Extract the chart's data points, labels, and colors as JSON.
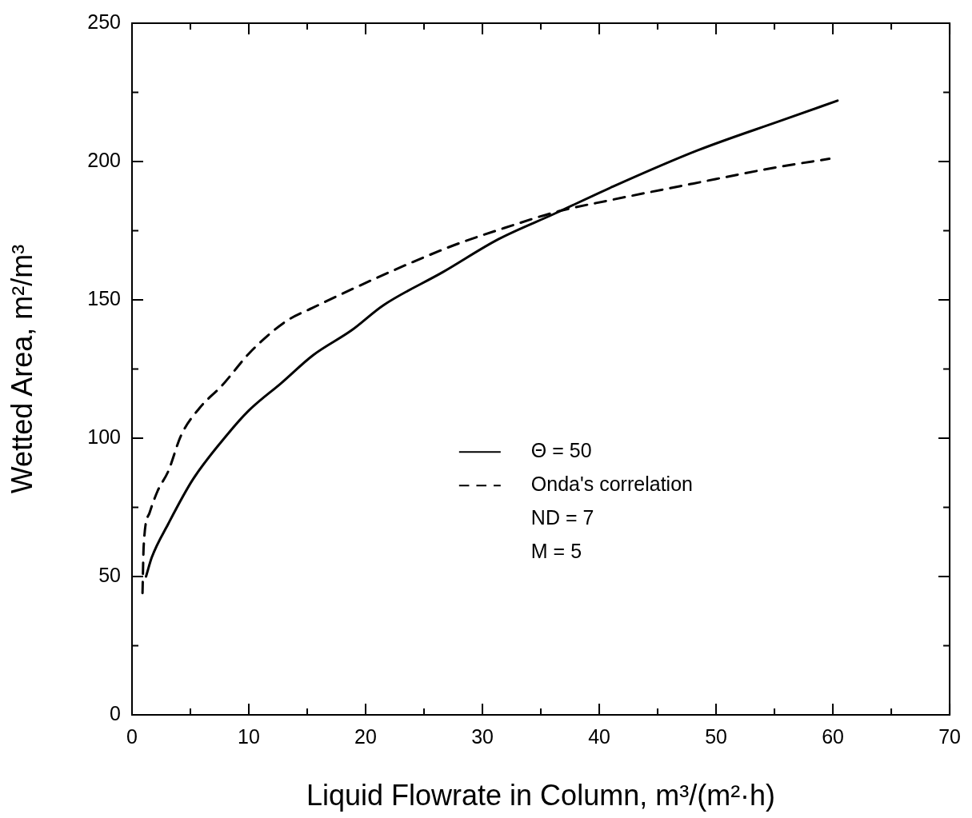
{
  "chart_data": {
    "type": "line",
    "xlabel": "Liquid Flowrate in Column, m³/(m²·h)",
    "ylabel": "Wetted Area, m²/m³",
    "xlim": [
      0,
      70
    ],
    "xticks": [
      0,
      {
        "value": 5,
        "label": null
      },
      10,
      {
        "value": 15,
        "label": null
      },
      20,
      {
        "value": 25,
        "label": null
      },
      30,
      {
        "value": 35,
        "label": null
      },
      40,
      {
        "value": 45,
        "label": null
      },
      50,
      {
        "value": 55,
        "label": null
      },
      60,
      {
        "value": 65,
        "label": null
      },
      70
    ],
    "ylim": [
      0,
      250
    ],
    "yticks": [
      0,
      {
        "value": 25,
        "label": null
      },
      50,
      {
        "value": 75,
        "label": null
      },
      100,
      {
        "value": 125,
        "label": null
      },
      150,
      {
        "value": 175,
        "label": null
      },
      200,
      {
        "value": 225,
        "label": null
      },
      250
    ],
    "grid": false,
    "legend": "right",
    "marker": "none",
    "annotations": [
      "ND = 7",
      "M = 5"
    ],
    "series": [
      {
        "name": "Θ = 50",
        "color": "#000000",
        "line_style": "solid",
        "x": [
          1.2,
          1.7,
          3.1,
          5.2,
          8.1,
          10,
          12.8,
          15.5,
          18.8,
          21.5,
          26.6,
          31.4,
          36.1,
          41.2,
          48.4,
          55.7,
          60.4
        ],
        "values": [
          50,
          57,
          69,
          85,
          101,
          110,
          120,
          130,
          139,
          148,
          160,
          172,
          181,
          191,
          204,
          215,
          222
        ]
      },
      {
        "name": "Onda's correlation",
        "color": "#000000",
        "line_style": "dashed",
        "x": [
          0.9,
          1.0,
          1.5,
          2.2,
          3.1,
          4.2,
          5.8,
          7.7,
          10.1,
          13.1,
          15.4,
          27.1,
          31.9,
          36.5,
          40.9,
          48,
          55.3,
          59.7
        ],
        "values": [
          44,
          61,
          73,
          81,
          88,
          101,
          111,
          119,
          131,
          142,
          147,
          169,
          176,
          182,
          186,
          192,
          198,
          201
        ]
      }
    ]
  }
}
